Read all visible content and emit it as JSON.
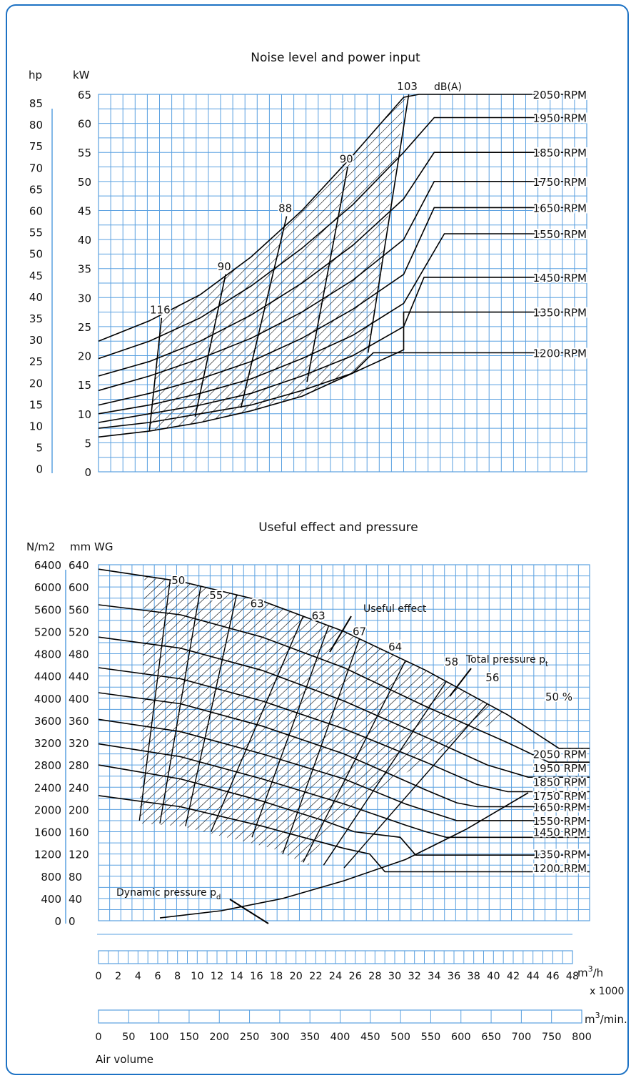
{
  "colors": {
    "frame": "#1d72c4",
    "grid": "#5aa0e0",
    "line": "#000000"
  },
  "chart_data": [
    {
      "type": "line",
      "title": "Noise level and power input",
      "ylabel_left": "hp",
      "ylabel_right": "kW",
      "unit_label": "dB(A)",
      "ylim": [
        0,
        65
      ],
      "xlim": [
        0,
        48
      ],
      "x_unit": "m3/h x 1000",
      "grid": true,
      "kw_ticks": [
        "65",
        "60",
        "55",
        "50",
        "45",
        "40",
        "35",
        "30",
        "25",
        "20",
        "15",
        "10",
        "5",
        "0"
      ],
      "hp_ticks": [
        "85",
        "80",
        "75",
        "70",
        "65",
        "60",
        "55",
        "50",
        "45",
        "40",
        "35",
        "30",
        "25",
        "20",
        "15",
        "10",
        "5",
        "0"
      ],
      "series": [
        {
          "name": "2050 RPM",
          "x": [
            0,
            5,
            10,
            15,
            20,
            25,
            30,
            31.5,
            48
          ],
          "y": [
            22.5,
            26,
            30.5,
            37,
            45,
            54.5,
            64.5,
            65,
            65
          ]
        },
        {
          "name": "1950 RPM",
          "x": [
            0,
            5,
            10,
            15,
            20,
            25,
            30,
            33,
            48
          ],
          "y": [
            19.5,
            22.5,
            26.5,
            32,
            38.5,
            46,
            55,
            61,
            61
          ]
        },
        {
          "name": "1850 RPM",
          "x": [
            0,
            5,
            10,
            15,
            20,
            25,
            30,
            33,
            48
          ],
          "y": [
            16.5,
            19,
            22.5,
            27,
            32.5,
            39,
            47,
            55,
            55
          ]
        },
        {
          "name": "1750 RPM",
          "x": [
            0,
            5,
            10,
            15,
            20,
            25,
            30,
            33,
            48
          ],
          "y": [
            14,
            16.5,
            19.5,
            23,
            27.5,
            33,
            40,
            50,
            50
          ]
        },
        {
          "name": "1650 RPM",
          "x": [
            0,
            5,
            10,
            15,
            20,
            25,
            30,
            33,
            48
          ],
          "y": [
            11.5,
            13.5,
            16,
            19,
            23,
            28,
            34,
            45.5,
            45.5
          ]
        },
        {
          "name": "1550 RPM",
          "x": [
            0,
            5,
            10,
            15,
            20,
            25,
            30,
            34,
            48
          ],
          "y": [
            10,
            11.5,
            13.5,
            16,
            19.5,
            23.5,
            29,
            41,
            41
          ]
        },
        {
          "name": "1450 RPM",
          "x": [
            0,
            5,
            10,
            15,
            20,
            25,
            30,
            32,
            48
          ],
          "y": [
            8.5,
            10,
            11.5,
            13.5,
            16.5,
            20,
            25,
            33.5,
            33.5
          ]
        },
        {
          "name": "1350 RPM",
          "x": [
            0,
            5,
            10,
            15,
            20,
            25,
            30,
            30,
            48
          ],
          "y": [
            7.5,
            8.5,
            10,
            11.5,
            14,
            17,
            21,
            27.5,
            27.5
          ]
        },
        {
          "name": "1200 RPM",
          "x": [
            0,
            5,
            10,
            15,
            20,
            25,
            27,
            48
          ],
          "y": [
            6,
            7,
            8.5,
            10.5,
            13,
            17,
            20.5,
            20.5
          ]
        }
      ],
      "noise_lines": [
        {
          "label": "116",
          "x": [
            5,
            6.2
          ],
          "y": [
            7,
            26.5
          ]
        },
        {
          "label": "90",
          "x": [
            9.5,
            12.5
          ],
          "y": [
            9.5,
            34
          ]
        },
        {
          "label": "88",
          "x": [
            14,
            18.5
          ],
          "y": [
            11,
            44
          ]
        },
        {
          "label": "90",
          "x": [
            20.5,
            24.5
          ],
          "y": [
            15.5,
            52.5
          ]
        },
        {
          "label": "103",
          "x": [
            26.5,
            30.5
          ],
          "y": [
            20.5,
            65
          ]
        }
      ]
    },
    {
      "type": "line",
      "title": "Useful effect and pressure",
      "ylabel_left": "N/m2",
      "ylabel_right": "mm WG",
      "ylim": [
        0,
        640
      ],
      "xlim": [
        0,
        48
      ],
      "grid": true,
      "mmwg_ticks": [
        "640",
        "600",
        "560",
        "520",
        "480",
        "440",
        "400",
        "360",
        "320",
        "280",
        "240",
        "200",
        "160",
        "120",
        "80",
        "40",
        "0"
      ],
      "nm2_ticks": [
        "6400",
        "6000",
        "5600",
        "5200",
        "4800",
        "4400",
        "4000",
        "3600",
        "3200",
        "2800",
        "2400",
        "2000",
        "1600",
        "1200",
        "800",
        "400",
        "0"
      ],
      "annotations": {
        "useful_effect": "Useful effect",
        "total_pressure": "Total pressure p",
        "total_pressure_sub": "t",
        "dynamic_pressure": "Dynamic pressure p",
        "dynamic_pressure_sub": "d"
      },
      "efficiency_labels": [
        "50",
        "55",
        "63",
        "63",
        "67",
        "64",
        "58",
        "56",
        "50 %"
      ],
      "series": [
        {
          "name": "2050 RPM",
          "x": [
            0,
            8,
            16,
            24,
            32,
            40,
            45,
            48
          ],
          "y": [
            632,
            610,
            575,
            520,
            450,
            370,
            310,
            310
          ]
        },
        {
          "name": "1950 RPM",
          "x": [
            0,
            8,
            16,
            24,
            32,
            40,
            44,
            48
          ],
          "y": [
            568,
            550,
            510,
            455,
            385,
            320,
            285,
            285
          ]
        },
        {
          "name": "1850 RPM",
          "x": [
            0,
            8,
            16,
            24,
            32,
            38,
            42,
            48
          ],
          "y": [
            510,
            490,
            450,
            395,
            330,
            280,
            258,
            258
          ]
        },
        {
          "name": "1750 RPM",
          "x": [
            0,
            8,
            16,
            24,
            32,
            37,
            40,
            48
          ],
          "y": [
            455,
            435,
            395,
            345,
            285,
            245,
            232,
            232
          ]
        },
        {
          "name": "1650 RPM",
          "x": [
            0,
            8,
            16,
            24,
            32,
            35,
            37,
            48
          ],
          "y": [
            410,
            390,
            350,
            300,
            235,
            212,
            205,
            205
          ]
        },
        {
          "name": "1550 RPM",
          "x": [
            0,
            8,
            16,
            24,
            30,
            33,
            35,
            48
          ],
          "y": [
            362,
            340,
            300,
            255,
            210,
            192,
            180,
            180
          ]
        },
        {
          "name": "1450 RPM",
          "x": [
            0,
            8,
            16,
            24,
            30,
            32,
            34,
            48
          ],
          "y": [
            318,
            295,
            255,
            210,
            172,
            160,
            150,
            150
          ]
        },
        {
          "name": "1350 RPM",
          "x": [
            0,
            8,
            16,
            22,
            25,
            29.5,
            31,
            48
          ],
          "y": [
            280,
            255,
            215,
            180,
            160,
            150,
            118,
            118
          ]
        },
        {
          "name": "1200 RPM",
          "x": [
            0,
            8,
            16,
            20,
            24,
            26.5,
            28,
            48
          ],
          "y": [
            225,
            205,
            170,
            150,
            130,
            120,
            88,
            88
          ]
        }
      ],
      "dynamic_pressure": {
        "x": [
          6,
          12,
          18,
          24,
          30,
          36,
          42
        ],
        "y": [
          5,
          18,
          40,
          72,
          110,
          165,
          230
        ]
      }
    }
  ],
  "x_axes": {
    "m3h_unit": "m3/h",
    "m3h_factor": "x 1000",
    "m3h_ticks": [
      "0",
      "2",
      "4",
      "6",
      "8",
      "10",
      "12",
      "14",
      "16",
      "18",
      "20",
      "22",
      "24",
      "26",
      "28",
      "30",
      "32",
      "34",
      "36",
      "38",
      "40",
      "42",
      "44",
      "46",
      "48"
    ],
    "m3min_unit": "m3/min.",
    "m3min_ticks": [
      "0",
      "50",
      "100",
      "150",
      "200",
      "250",
      "300",
      "350",
      "400",
      "450",
      "500",
      "550",
      "600",
      "650",
      "700",
      "750",
      "800"
    ],
    "air_volume_label": "Air volume"
  }
}
